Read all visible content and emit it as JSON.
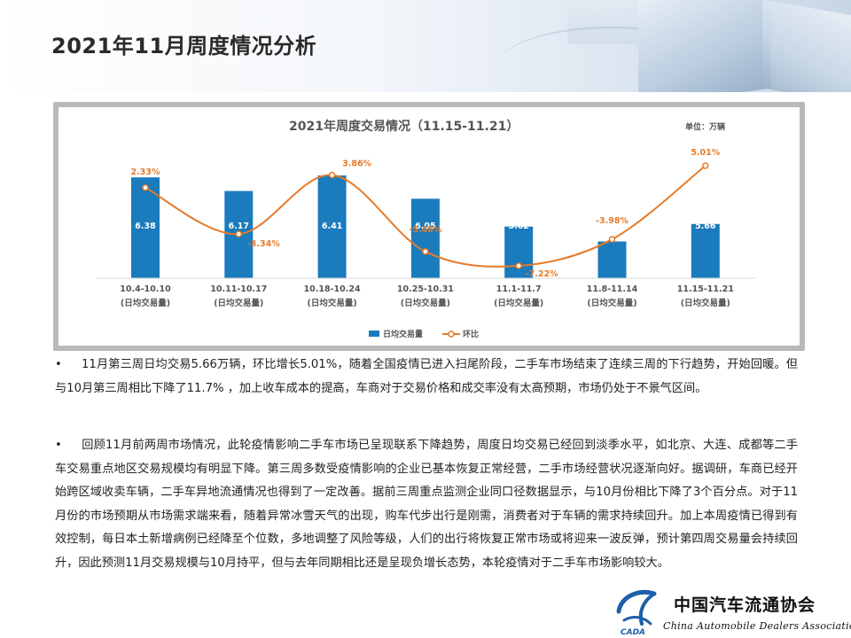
{
  "slide": {
    "title": "2021年11月周度情况分析"
  },
  "chart_data": {
    "type": "bar",
    "title": "2021年周度交易情况（11.15-11.21）",
    "unit_prefix": "单位：",
    "unit": "万辆",
    "categories": [
      "10.4-10.10",
      "10.11-10.17",
      "10.18-10.24",
      "10.25-10.31",
      "11.1-11.7",
      "11.8-11.14",
      "11.15-11.21"
    ],
    "category_sub": "(日均交易量)",
    "series": [
      {
        "name": "日均交易量",
        "type": "bar",
        "values": [
          6.38,
          6.17,
          6.41,
          6.05,
          5.62,
          5.39,
          5.66
        ],
        "color": "#1a7bbd"
      },
      {
        "name": "环比",
        "type": "line",
        "values": [
          2.33,
          -3.34,
          3.86,
          -5.48,
          -7.22,
          -3.98,
          5.01
        ],
        "labels": [
          "2.33%",
          "-3.34%",
          "3.86%",
          "-5.48%",
          "-7.22%",
          "-3.98%",
          "5.01%"
        ],
        "color": "#e57b2a"
      }
    ],
    "legend_position": "bottom",
    "grid": false
  },
  "paragraphs": [
    {
      "bullet": "•",
      "text": "11月第三周日均交易5.66万辆，环比增长5.01%，随着全国疫情已进入扫尾阶段，二手车市场结束了连续三周的下行趋势，开始回暖。但与10月第三周相比下降了11.7% ，加上收车成本的提高，车商对于交易价格和成交率没有太高预期，市场仍处于不景气区间。"
    },
    {
      "bullet": "•",
      "text": "回顾11月前两周市场情况，此轮疫情影响二手车市场已呈现联系下降趋势，周度日均交易已经回到淡季水平，如北京、大连、成都等二手车交易重点地区交易规模均有明显下降。第三周多数受疫情影响的企业已基本恢复正常经营，二手市场经营状况逐渐向好。据调研，车商已经开始跨区域收卖车辆，二手车异地流通情况也得到了一定改善。据前三周重点监测企业同口径数据显示，与10月份相比下降了3个百分点。对于11月份的市场预期从市场需求端来看，随着异常冰雪天气的出现，购车代步出行是刚需，消费者对于车辆的需求持续回升。加上本周疫情已得到有效控制，每日本土新增病例已经降至个位数，多地调整了风险等级，人们的出行将恢复正常市场或将迎来一波反弹，预计第四周交易量会持续回升，因此预测11月交易规模与10月持平，但与去年同期相比还是呈现负增长态势，本轮疫情对于二手车市场影响较大。"
    }
  ],
  "logo": {
    "name_cn": "中国汽车流通协会",
    "name_en": "China Automobile Dealers Association",
    "abbr": "CADA"
  }
}
